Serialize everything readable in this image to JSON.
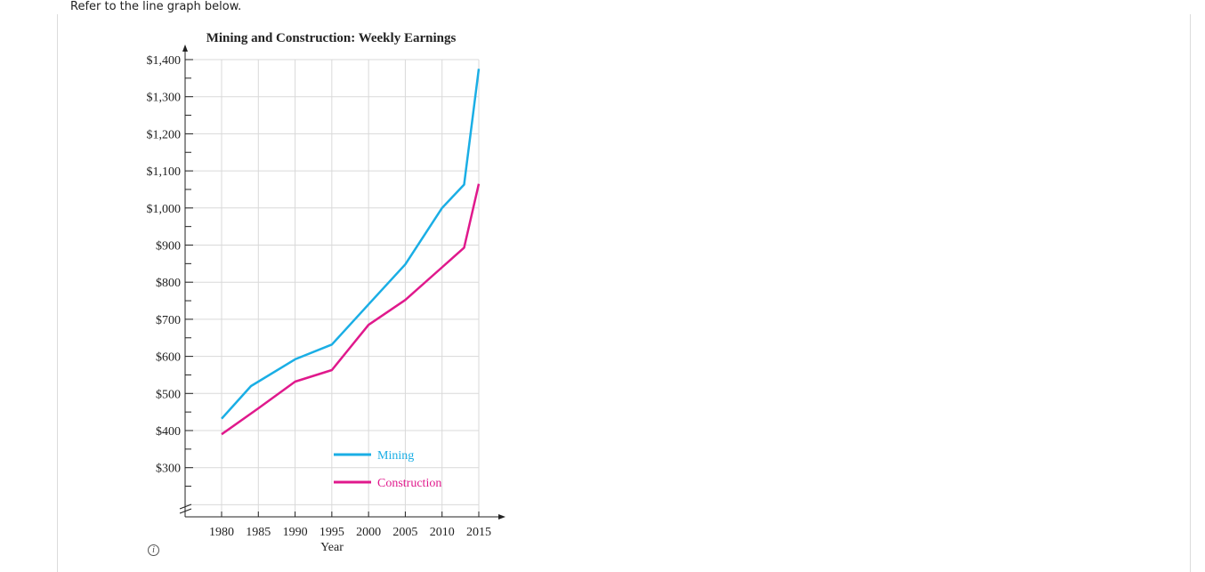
{
  "prompt": "Refer to the line graph below.",
  "info_icon_glyph": "i",
  "chart_data": {
    "type": "line",
    "title": "Mining and Construction: Weekly Earnings",
    "xlabel": "Year",
    "ylabel": "",
    "xlim": [
      1980,
      2015
    ],
    "ylim": [
      200,
      1400
    ],
    "x_ticks": [
      "1980",
      "1985",
      "1990",
      "1995",
      "2000",
      "2005",
      "2010",
      "2015"
    ],
    "y_ticks": [
      "$300",
      "$400",
      "$500",
      "$600",
      "$700",
      "$800",
      "$900",
      "$1,000",
      "$1,100",
      "$1,200",
      "$1,300",
      "$1,400"
    ],
    "legend_position": "bottom-right",
    "grid": true,
    "series": [
      {
        "name": "Mining",
        "color": "#1aaee5",
        "x": [
          1980,
          1984,
          1990,
          1995,
          2000,
          2005,
          2010,
          2013,
          2015
        ],
        "y": [
          432,
          520,
          592,
          632,
          740,
          848,
          1000,
          1063,
          1375
        ]
      },
      {
        "name": "Construction",
        "color": "#e0198c",
        "x": [
          1980,
          1985,
          1990,
          1995,
          1997,
          2000,
          2005,
          2010,
          2013,
          2015
        ],
        "y": [
          390,
          460,
          532,
          563,
          612,
          685,
          752,
          840,
          893,
          1065
        ]
      }
    ]
  }
}
